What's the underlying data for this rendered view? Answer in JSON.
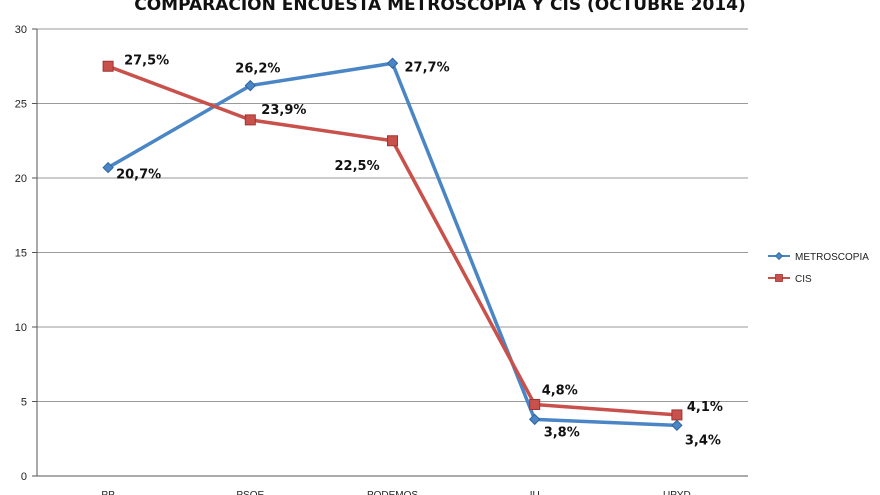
{
  "chart_data": {
    "type": "line",
    "title": "COMPARACION ENCUESTA METROSCOPIA Y CIS (OCTUBRE 2014)",
    "categories": [
      "PP",
      "PSOE",
      "PODEMOS",
      "IU",
      "UPYD"
    ],
    "ylim": [
      0,
      30
    ],
    "yticks": [
      "0",
      "5",
      "10",
      "15",
      "20",
      "25",
      "30"
    ],
    "grid": true,
    "legend_position": "right",
    "series": [
      {
        "name": "METROSCOPIA",
        "color": "#4a86c5",
        "marker": "diamond",
        "values": [
          20.7,
          26.2,
          27.7,
          3.8,
          3.4
        ],
        "labels": [
          "20,7%",
          "26,2%",
          "27,7%",
          "3,8%",
          "3,4%"
        ]
      },
      {
        "name": "CIS",
        "color": "#c9514c",
        "marker": "square",
        "values": [
          27.5,
          23.9,
          22.5,
          4.8,
          4.1
        ],
        "labels": [
          "27,5%",
          "23,9%",
          "22,5%",
          "4,8%",
          "4,1%"
        ]
      }
    ]
  }
}
